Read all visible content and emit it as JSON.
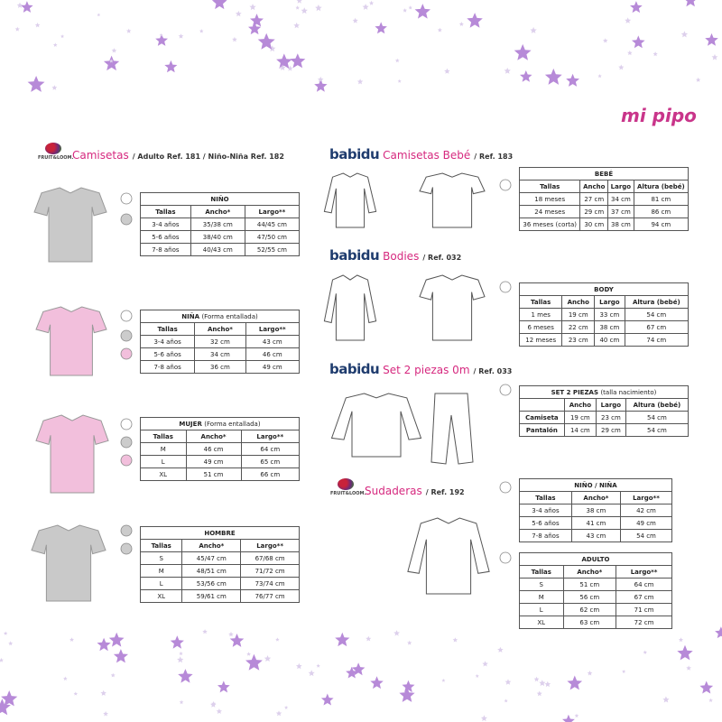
{
  "brand": "mi pipo",
  "sections": [
    {
      "logo": "FRUIT&LOOM.",
      "title": "Camisetas",
      "ref": "/ Adulto Ref. 181 / Niño-Niña Ref. 182",
      "tables": [
        {
          "title": "NIÑO",
          "note": null,
          "headers": [
            "Tallas",
            "Ancho*",
            "Largo**"
          ],
          "rows": [
            [
              "3-4 años",
              "35/38 cm",
              "44/45 cm"
            ],
            [
              "5-6 años",
              "38/40 cm",
              "47/50 cm"
            ],
            [
              "7-8 años",
              "40/43 cm",
              "52/55 cm"
            ]
          ]
        },
        {
          "title": "NIÑA",
          "note": "(Forma entallada)",
          "headers": [
            "Tallas",
            "Ancho*",
            "Largo**"
          ],
          "rows": [
            [
              "3-4 años",
              "32 cm",
              "43 cm"
            ],
            [
              "5-6 años",
              "34 cm",
              "46 cm"
            ],
            [
              "7-8 años",
              "36 cm",
              "49 cm"
            ]
          ]
        },
        {
          "title": "MUJER",
          "note": "(Forma entallada)",
          "headers": [
            "Tallas",
            "Ancho*",
            "Largo**"
          ],
          "rows": [
            [
              "M",
              "46 cm",
              "64 cm"
            ],
            [
              "L",
              "49 cm",
              "65 cm"
            ],
            [
              "XL",
              "51 cm",
              "66 cm"
            ]
          ]
        },
        {
          "title": "HOMBRE",
          "note": null,
          "headers": [
            "Tallas",
            "Ancho*",
            "Largo**"
          ],
          "rows": [
            [
              "S",
              "45/47 cm",
              "67/68 cm"
            ],
            [
              "M",
              "48/51 cm",
              "71/72 cm"
            ],
            [
              "L",
              "53/56 cm",
              "73/74 cm"
            ],
            [
              "XL",
              "59/61 cm",
              "76/77 cm"
            ]
          ]
        }
      ]
    },
    {
      "logo": "babidu",
      "title": "Camisetas Bebé",
      "ref": "/ Ref. 183",
      "tables": [
        {
          "title": "BEBÉ",
          "note": null,
          "headers": [
            "Tallas",
            "Ancho",
            "Largo",
            "Altura (bebé)"
          ],
          "rows": [
            [
              "18 meses",
              "27 cm",
              "34 cm",
              "81 cm"
            ],
            [
              "24 meses",
              "29 cm",
              "37 cm",
              "86 cm"
            ],
            [
              "36 meses (corta)",
              "30 cm",
              "38 cm",
              "94 cm"
            ]
          ]
        }
      ]
    },
    {
      "logo": "babidu",
      "title": "Bodies",
      "ref": "/ Ref. 032",
      "tables": [
        {
          "title": "BODY",
          "note": null,
          "headers": [
            "Tallas",
            "Ancho",
            "Largo",
            "Altura (bebé)"
          ],
          "rows": [
            [
              "1 mes",
              "19 cm",
              "33 cm",
              "54 cm"
            ],
            [
              "6 meses",
              "22 cm",
              "38 cm",
              "67 cm"
            ],
            [
              "12 meses",
              "23 cm",
              "40 cm",
              "74 cm"
            ]
          ]
        }
      ]
    },
    {
      "logo": "babidu",
      "title": "Set 2 piezas 0m",
      "ref": "/ Ref. 033",
      "tables": [
        {
          "title": "SET 2 PIEZAS",
          "note": "(talla nacimiento)",
          "headers": [
            null,
            "Ancho",
            "Largo",
            "Altura (bebé)"
          ],
          "rows": [
            [
              "Camiseta",
              "19 cm",
              "23 cm",
              "54 cm"
            ],
            [
              "Pantalón",
              "14 cm",
              "29 cm",
              "54 cm"
            ]
          ]
        }
      ]
    },
    {
      "logo": "FRUIT&LOOM.",
      "title": "Sudaderas",
      "ref": "/ Ref. 192",
      "tables": [
        {
          "title": "NIÑO / NIÑA",
          "note": null,
          "headers": [
            "Tallas",
            "Ancho*",
            "Largo**"
          ],
          "rows": [
            [
              "3-4 años",
              "38 cm",
              "42 cm"
            ],
            [
              "5-6 años",
              "41 cm",
              "49 cm"
            ],
            [
              "7-8 años",
              "43 cm",
              "54 cm"
            ]
          ]
        },
        {
          "title": "ADULTO",
          "note": null,
          "headers": [
            "Tallas",
            "Ancho*",
            "Largo**"
          ],
          "rows": [
            [
              "S",
              "51 cm",
              "64 cm"
            ],
            [
              "M",
              "56 cm",
              "67 cm"
            ],
            [
              "L",
              "62 cm",
              "71 cm"
            ],
            [
              "XL",
              "63 cm",
              "72 cm"
            ]
          ]
        }
      ]
    }
  ]
}
